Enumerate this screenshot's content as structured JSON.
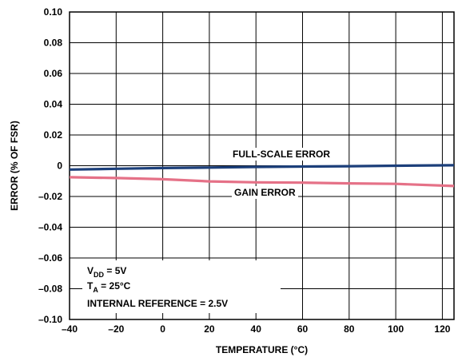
{
  "chart_data": {
    "type": "line",
    "title": "",
    "xlabel": "TEMPERATURE (°C)",
    "ylabel": "ERROR (% OF FSR)",
    "xlim": [
      -40,
      125
    ],
    "ylim": [
      -0.1,
      0.1
    ],
    "x_ticks": [
      -40,
      -20,
      0,
      20,
      40,
      60,
      80,
      100,
      120
    ],
    "x_tick_labels": [
      "–40",
      "–20",
      "0",
      "20",
      "40",
      "60",
      "80",
      "100",
      "120"
    ],
    "y_ticks": [
      0.1,
      0.08,
      0.06,
      0.04,
      0.02,
      0,
      -0.02,
      -0.04,
      -0.06,
      -0.08,
      -0.1
    ],
    "y_tick_labels": [
      "0.10",
      "0.08",
      "0.06",
      "0.04",
      "0.02",
      "0",
      "–0.02",
      "–0.04",
      "–0.06",
      "–0.08",
      "–0.10"
    ],
    "grid": true,
    "series": [
      {
        "name": "FULL-SCALE ERROR",
        "color": "#1c3f7a",
        "x": [
          -40,
          -20,
          0,
          20,
          40,
          60,
          80,
          100,
          125
        ],
        "y": [
          -0.0025,
          -0.002,
          -0.0015,
          -0.0012,
          -0.0008,
          -0.0005,
          -0.0003,
          0.0,
          0.0003
        ]
      },
      {
        "name": "GAIN ERROR",
        "color": "#e57187",
        "x": [
          -40,
          -20,
          0,
          20,
          40,
          60,
          80,
          100,
          125
        ],
        "y": [
          -0.0075,
          -0.008,
          -0.0088,
          -0.0102,
          -0.0108,
          -0.011,
          -0.0115,
          -0.0118,
          -0.0132
        ]
      }
    ],
    "conditions": {
      "vdd_main": "V",
      "vdd_sub": "DD",
      "vdd_value": " = 5V",
      "ta_main": "T",
      "ta_sub": "A",
      "ta_value": " = 25°C",
      "ref": "INTERNAL REFERENCE = 2.5V"
    }
  }
}
